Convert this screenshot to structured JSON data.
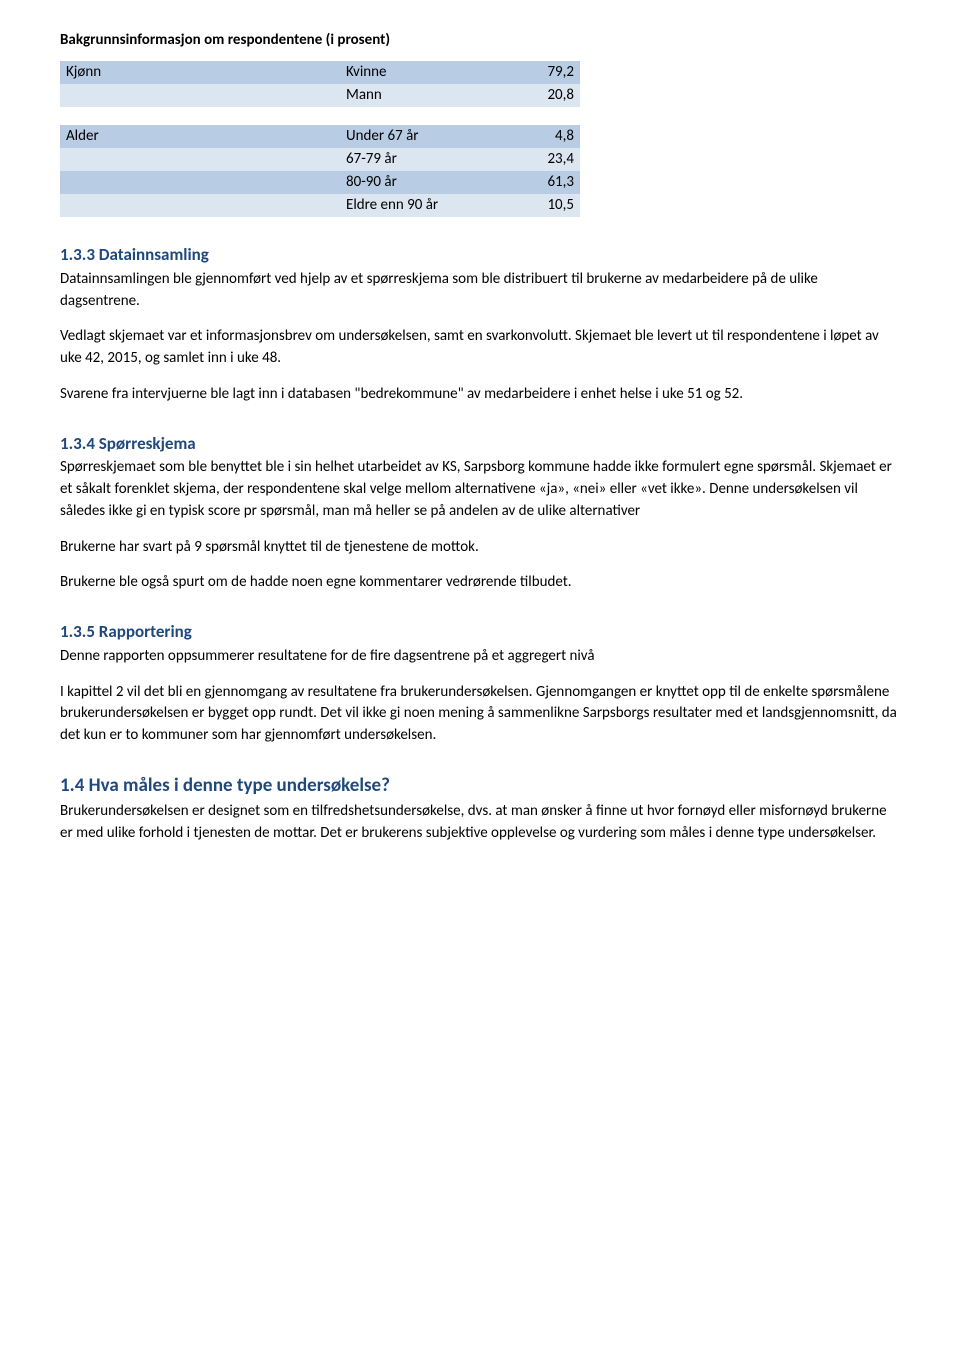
{
  "title": "Bakgrunnsinformasjon om respondentene (i prosent)",
  "table": {
    "rows": [
      {
        "label": "Kjønn",
        "cat": "Kvinne",
        "val": "79,2",
        "tone": "dark"
      },
      {
        "label": "",
        "cat": "Mann",
        "val": "20,8",
        "tone": "light"
      },
      {
        "label": "",
        "cat": "",
        "val": "",
        "tone": "blank"
      },
      {
        "label": "Alder",
        "cat": "Under 67 år",
        "val": "4,8",
        "tone": "dark"
      },
      {
        "label": "",
        "cat": "67-79 år",
        "val": "23,4",
        "tone": "light"
      },
      {
        "label": "",
        "cat": "80-90 år",
        "val": "61,3",
        "tone": "dark"
      },
      {
        "label": "",
        "cat": "Eldre enn 90 år",
        "val": "10,5",
        "tone": "light"
      }
    ]
  },
  "s133": {
    "heading": "1.3.3 Datainnsamling",
    "p1": "Datainnsamlingen ble gjennomført ved hjelp av et spørreskjema som ble distribuert til brukerne av medarbeidere på de ulike dagsentrene.",
    "p2": "Vedlagt skjemaet var et informasjonsbrev om undersøkelsen, samt en svarkonvolutt. Skjemaet ble levert ut til respondentene i løpet av uke 42, 2015, og samlet inn i uke 48.",
    "p3": "Svarene fra intervjuerne ble lagt inn i databasen \"bedrekommune\" av medarbeidere i enhet helse i uke 51 og 52."
  },
  "s134": {
    "heading": "1.3.4 Spørreskjema",
    "p1": "Spørreskjemaet som ble benyttet ble i sin helhet utarbeidet av KS, Sarpsborg kommune hadde ikke formulert egne spørsmål. Skjemaet er et såkalt forenklet skjema, der respondentene skal velge mellom alternativene «ja», «nei» eller «vet ikke». Denne undersøkelsen vil således ikke gi en typisk score pr spørsmål, man må heller se på andelen av de ulike alternativer",
    "p2": "Brukerne har svart på 9 spørsmål knyttet til de tjenestene de mottok.",
    "p3": "Brukerne ble også spurt om de hadde noen egne kommentarer vedrørende tilbudet."
  },
  "s135": {
    "heading": "1.3.5 Rapportering",
    "p1": "Denne rapporten oppsummerer resultatene for de fire dagsentrene på et aggregert nivå",
    "p2": "I kapittel 2 vil det bli en gjennomgang av resultatene fra brukerundersøkelsen. Gjennomgangen er knyttet opp til de enkelte spørsmålene brukerundersøkelsen er bygget opp rundt. Det vil ikke gi noen mening å sammenlikne Sarpsborgs resultater med et landsgjennomsnitt, da det kun er to kommuner som har gjennomført undersøkelsen."
  },
  "s14": {
    "heading": "1.4 Hva måles i denne type undersøkelse?",
    "p1": "Brukerundersøkelsen er designet som en tilfredshetsundersøkelse, dvs. at man ønsker å finne ut hvor fornøyd eller misfornøyd brukerne er med ulike forhold i tjenesten de mottar. Det er brukerens subjektive opplevelse og vurdering som måles i denne type undersøkelser."
  }
}
